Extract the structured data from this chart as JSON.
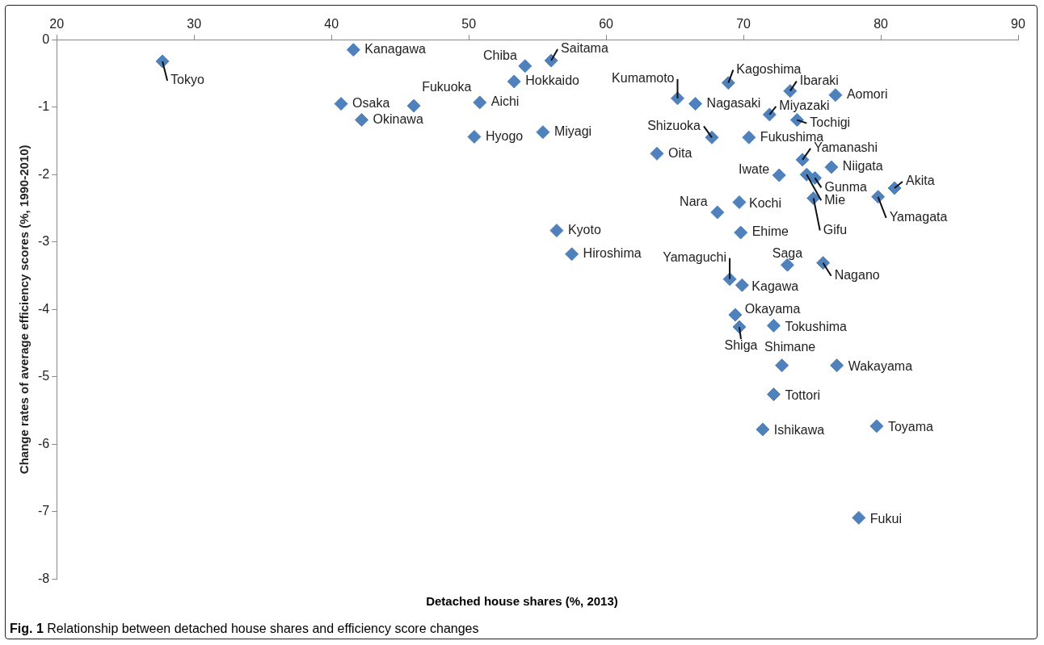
{
  "chart_data": {
    "type": "scatter",
    "xlabel": "Detached house shares (%, 2013)",
    "ylabel": "Change rates of average efficiency scores (%, 1990-2010)",
    "xlim": [
      20,
      90
    ],
    "xticks": [
      20,
      30,
      40,
      50,
      60,
      70,
      80,
      90
    ],
    "ylim": [
      -8,
      0
    ],
    "yticks": [
      -8,
      -7,
      -6,
      -5,
      -4,
      -3,
      -2,
      -1,
      0
    ],
    "grid": false,
    "legend": false,
    "marker": "diamond",
    "series": [
      {
        "color": "#4f81bd",
        "x": [
          27.7,
          41.6,
          54.1,
          56.0,
          53.3,
          40.7,
          46.0,
          50.8,
          42.2,
          50.4,
          55.4,
          65.2,
          66.5,
          68.9,
          73.4,
          76.7,
          71.9,
          73.9,
          67.7,
          70.4,
          63.7,
          74.3,
          76.4,
          72.6,
          75.2,
          74.6,
          75.1,
          81.0,
          79.8,
          68.1,
          69.7,
          69.8,
          56.4,
          57.5,
          73.2,
          75.8,
          69.0,
          69.9,
          69.4,
          72.2,
          69.7,
          72.8,
          76.8,
          72.2,
          71.4,
          79.7,
          78.4
        ],
        "values": [
          -0.32,
          -0.15,
          -0.39,
          -0.31,
          -0.62,
          -0.95,
          -0.98,
          -0.93,
          -1.19,
          -1.44,
          -1.37,
          -0.87,
          -0.95,
          -0.64,
          -0.76,
          -0.82,
          -1.11,
          -1.19,
          -1.45,
          -1.45,
          -1.69,
          -1.78,
          -1.89,
          -2.01,
          -2.05,
          -2.0,
          -2.35,
          -2.2,
          -2.33,
          -2.56,
          -2.41,
          -2.86,
          -2.83,
          -3.18,
          -3.34,
          -3.31,
          -3.55,
          -3.64,
          -4.08,
          -4.24,
          -4.26,
          -4.83,
          -4.83,
          -5.26,
          -5.78,
          -5.73,
          -7.09
        ]
      }
    ],
    "annotations": [
      {
        "text": "Tokyo",
        "x": 27.7,
        "y": -0.32
      },
      {
        "text": "Kanagawa",
        "x": 41.6,
        "y": -0.15
      },
      {
        "text": "Chiba",
        "x": 54.1,
        "y": -0.39
      },
      {
        "text": "Saitama",
        "x": 56.0,
        "y": -0.31
      },
      {
        "text": "Hokkaido",
        "x": 53.3,
        "y": -0.62
      },
      {
        "text": "Osaka",
        "x": 40.7,
        "y": -0.95
      },
      {
        "text": "Fukuoka",
        "x": 46.0,
        "y": -0.98
      },
      {
        "text": "Aichi",
        "x": 50.8,
        "y": -0.93
      },
      {
        "text": "Okinawa",
        "x": 42.2,
        "y": -1.19
      },
      {
        "text": "Hyogo",
        "x": 50.4,
        "y": -1.44
      },
      {
        "text": "Miyagi",
        "x": 55.4,
        "y": -1.37
      },
      {
        "text": "Kumamoto",
        "x": 65.2,
        "y": -0.87
      },
      {
        "text": "Nagasaki",
        "x": 66.5,
        "y": -0.95
      },
      {
        "text": "Kagoshima",
        "x": 68.9,
        "y": -0.64
      },
      {
        "text": "Ibaraki",
        "x": 73.4,
        "y": -0.76
      },
      {
        "text": "Aomori",
        "x": 76.7,
        "y": -0.82
      },
      {
        "text": "Miyazaki",
        "x": 71.9,
        "y": -1.11
      },
      {
        "text": "Tochigi",
        "x": 73.9,
        "y": -1.19
      },
      {
        "text": "Shizuoka",
        "x": 67.7,
        "y": -1.45
      },
      {
        "text": "Fukushima",
        "x": 70.4,
        "y": -1.45
      },
      {
        "text": "Oita",
        "x": 63.7,
        "y": -1.69
      },
      {
        "text": "Yamanashi",
        "x": 74.3,
        "y": -1.78
      },
      {
        "text": "Niigata",
        "x": 76.4,
        "y": -1.89
      },
      {
        "text": "Iwate",
        "x": 72.6,
        "y": -2.01
      },
      {
        "text": "Gunma",
        "x": 75.2,
        "y": -2.05
      },
      {
        "text": "Mie",
        "x": 74.6,
        "y": -2.0
      },
      {
        "text": "Gifu",
        "x": 75.1,
        "y": -2.35
      },
      {
        "text": "Akita",
        "x": 81.0,
        "y": -2.2
      },
      {
        "text": "Yamagata",
        "x": 79.8,
        "y": -2.33
      },
      {
        "text": "Nara",
        "x": 68.1,
        "y": -2.56
      },
      {
        "text": "Kochi",
        "x": 69.7,
        "y": -2.41
      },
      {
        "text": "Ehime",
        "x": 69.8,
        "y": -2.86
      },
      {
        "text": "Kyoto",
        "x": 56.4,
        "y": -2.83
      },
      {
        "text": "Hiroshima",
        "x": 57.5,
        "y": -3.18
      },
      {
        "text": "Saga",
        "x": 73.2,
        "y": -3.34
      },
      {
        "text": "Nagano",
        "x": 75.8,
        "y": -3.31
      },
      {
        "text": "Yamaguchi",
        "x": 69.0,
        "y": -3.55
      },
      {
        "text": "Kagawa",
        "x": 69.9,
        "y": -3.64
      },
      {
        "text": "Okayama",
        "x": 69.4,
        "y": -4.08
      },
      {
        "text": "Tokushima",
        "x": 72.2,
        "y": -4.24
      },
      {
        "text": "Shiga",
        "x": 69.7,
        "y": -4.26
      },
      {
        "text": "Shimane",
        "x": 72.8,
        "y": -4.83
      },
      {
        "text": "Wakayama",
        "x": 76.8,
        "y": -4.83
      },
      {
        "text": "Tottori",
        "x": 72.2,
        "y": -5.26
      },
      {
        "text": "Ishikawa",
        "x": 71.4,
        "y": -5.78
      },
      {
        "text": "Toyama",
        "x": 79.7,
        "y": -5.73
      },
      {
        "text": "Fukui",
        "x": 78.4,
        "y": -7.09
      },
      "Fig. 1 Relationship between detached house shares and efficiency score changes"
    ]
  }
}
